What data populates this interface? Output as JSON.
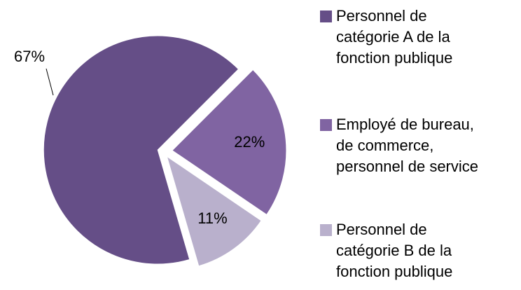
{
  "chart_data": {
    "type": "pie",
    "categories": [
      "Personnel de catégorie A de la fonction publique",
      "Employé de bureau, de commerce, personnel de service",
      "Personnel de catégorie B de la fonction publique"
    ],
    "values": [
      67,
      22,
      11
    ],
    "value_labels": [
      "67%",
      "22%",
      "11%"
    ],
    "colors": [
      "#654e87",
      "#8064a2",
      "#b9b0cc"
    ],
    "legend": "right"
  }
}
